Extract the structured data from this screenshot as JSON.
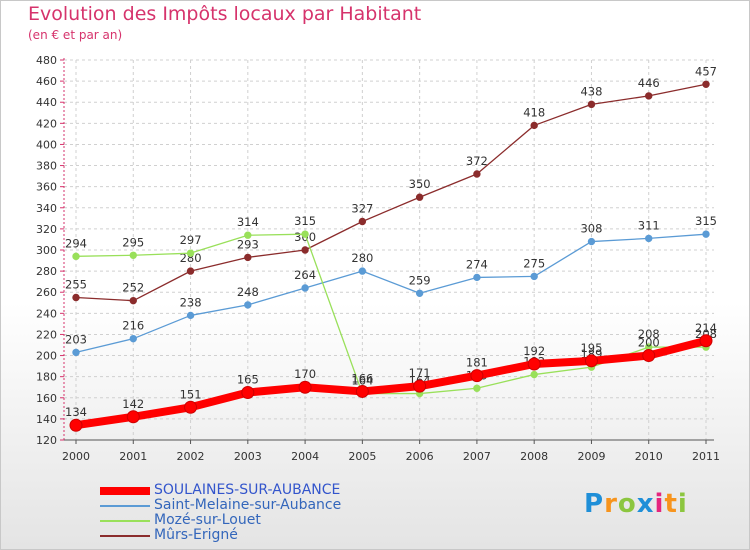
{
  "title": "Evolution des Impôts locaux par Habitant",
  "subtitle": "(en € et par an)",
  "logo": "Proxiti",
  "chart_data": {
    "type": "line",
    "title": "Evolution des Impôts locaux par Habitant",
    "subtitle": "(en € et par an)",
    "xlabel": "",
    "ylabel": "",
    "ylim": [
      120,
      480
    ],
    "ytick_step": 20,
    "x": [
      "2000",
      "2001",
      "2002",
      "2003",
      "2004",
      "2005",
      "2006",
      "2007",
      "2008",
      "2009",
      "2010",
      "2011"
    ],
    "series": [
      {
        "name": "SOULAINES-SUR-AUBANCE",
        "color": "#ff0000",
        "width": 8,
        "values": [
          134,
          142,
          151,
          165,
          170,
          166,
          171,
          181,
          192,
          195,
          200,
          214
        ]
      },
      {
        "name": "Saint-Melaine-sur-Aubance",
        "color": "#5b9bd5",
        "width": 1.3,
        "values": [
          203,
          216,
          238,
          248,
          264,
          280,
          259,
          274,
          275,
          308,
          311,
          315
        ]
      },
      {
        "name": "Mozé-sur-Louet",
        "color": "#99e05a",
        "width": 1.3,
        "values": [
          294,
          295,
          297,
          314,
          315,
          164,
          164,
          169,
          182,
          189,
          208,
          208
        ]
      },
      {
        "name": "Mûrs-Erigné",
        "color": "#8b2c2c",
        "width": 1.3,
        "values": [
          255,
          252,
          280,
          293,
          300,
          327,
          350,
          372,
          418,
          438,
          446,
          457
        ]
      }
    ],
    "legend_position": "bottom-left",
    "grid": true
  }
}
